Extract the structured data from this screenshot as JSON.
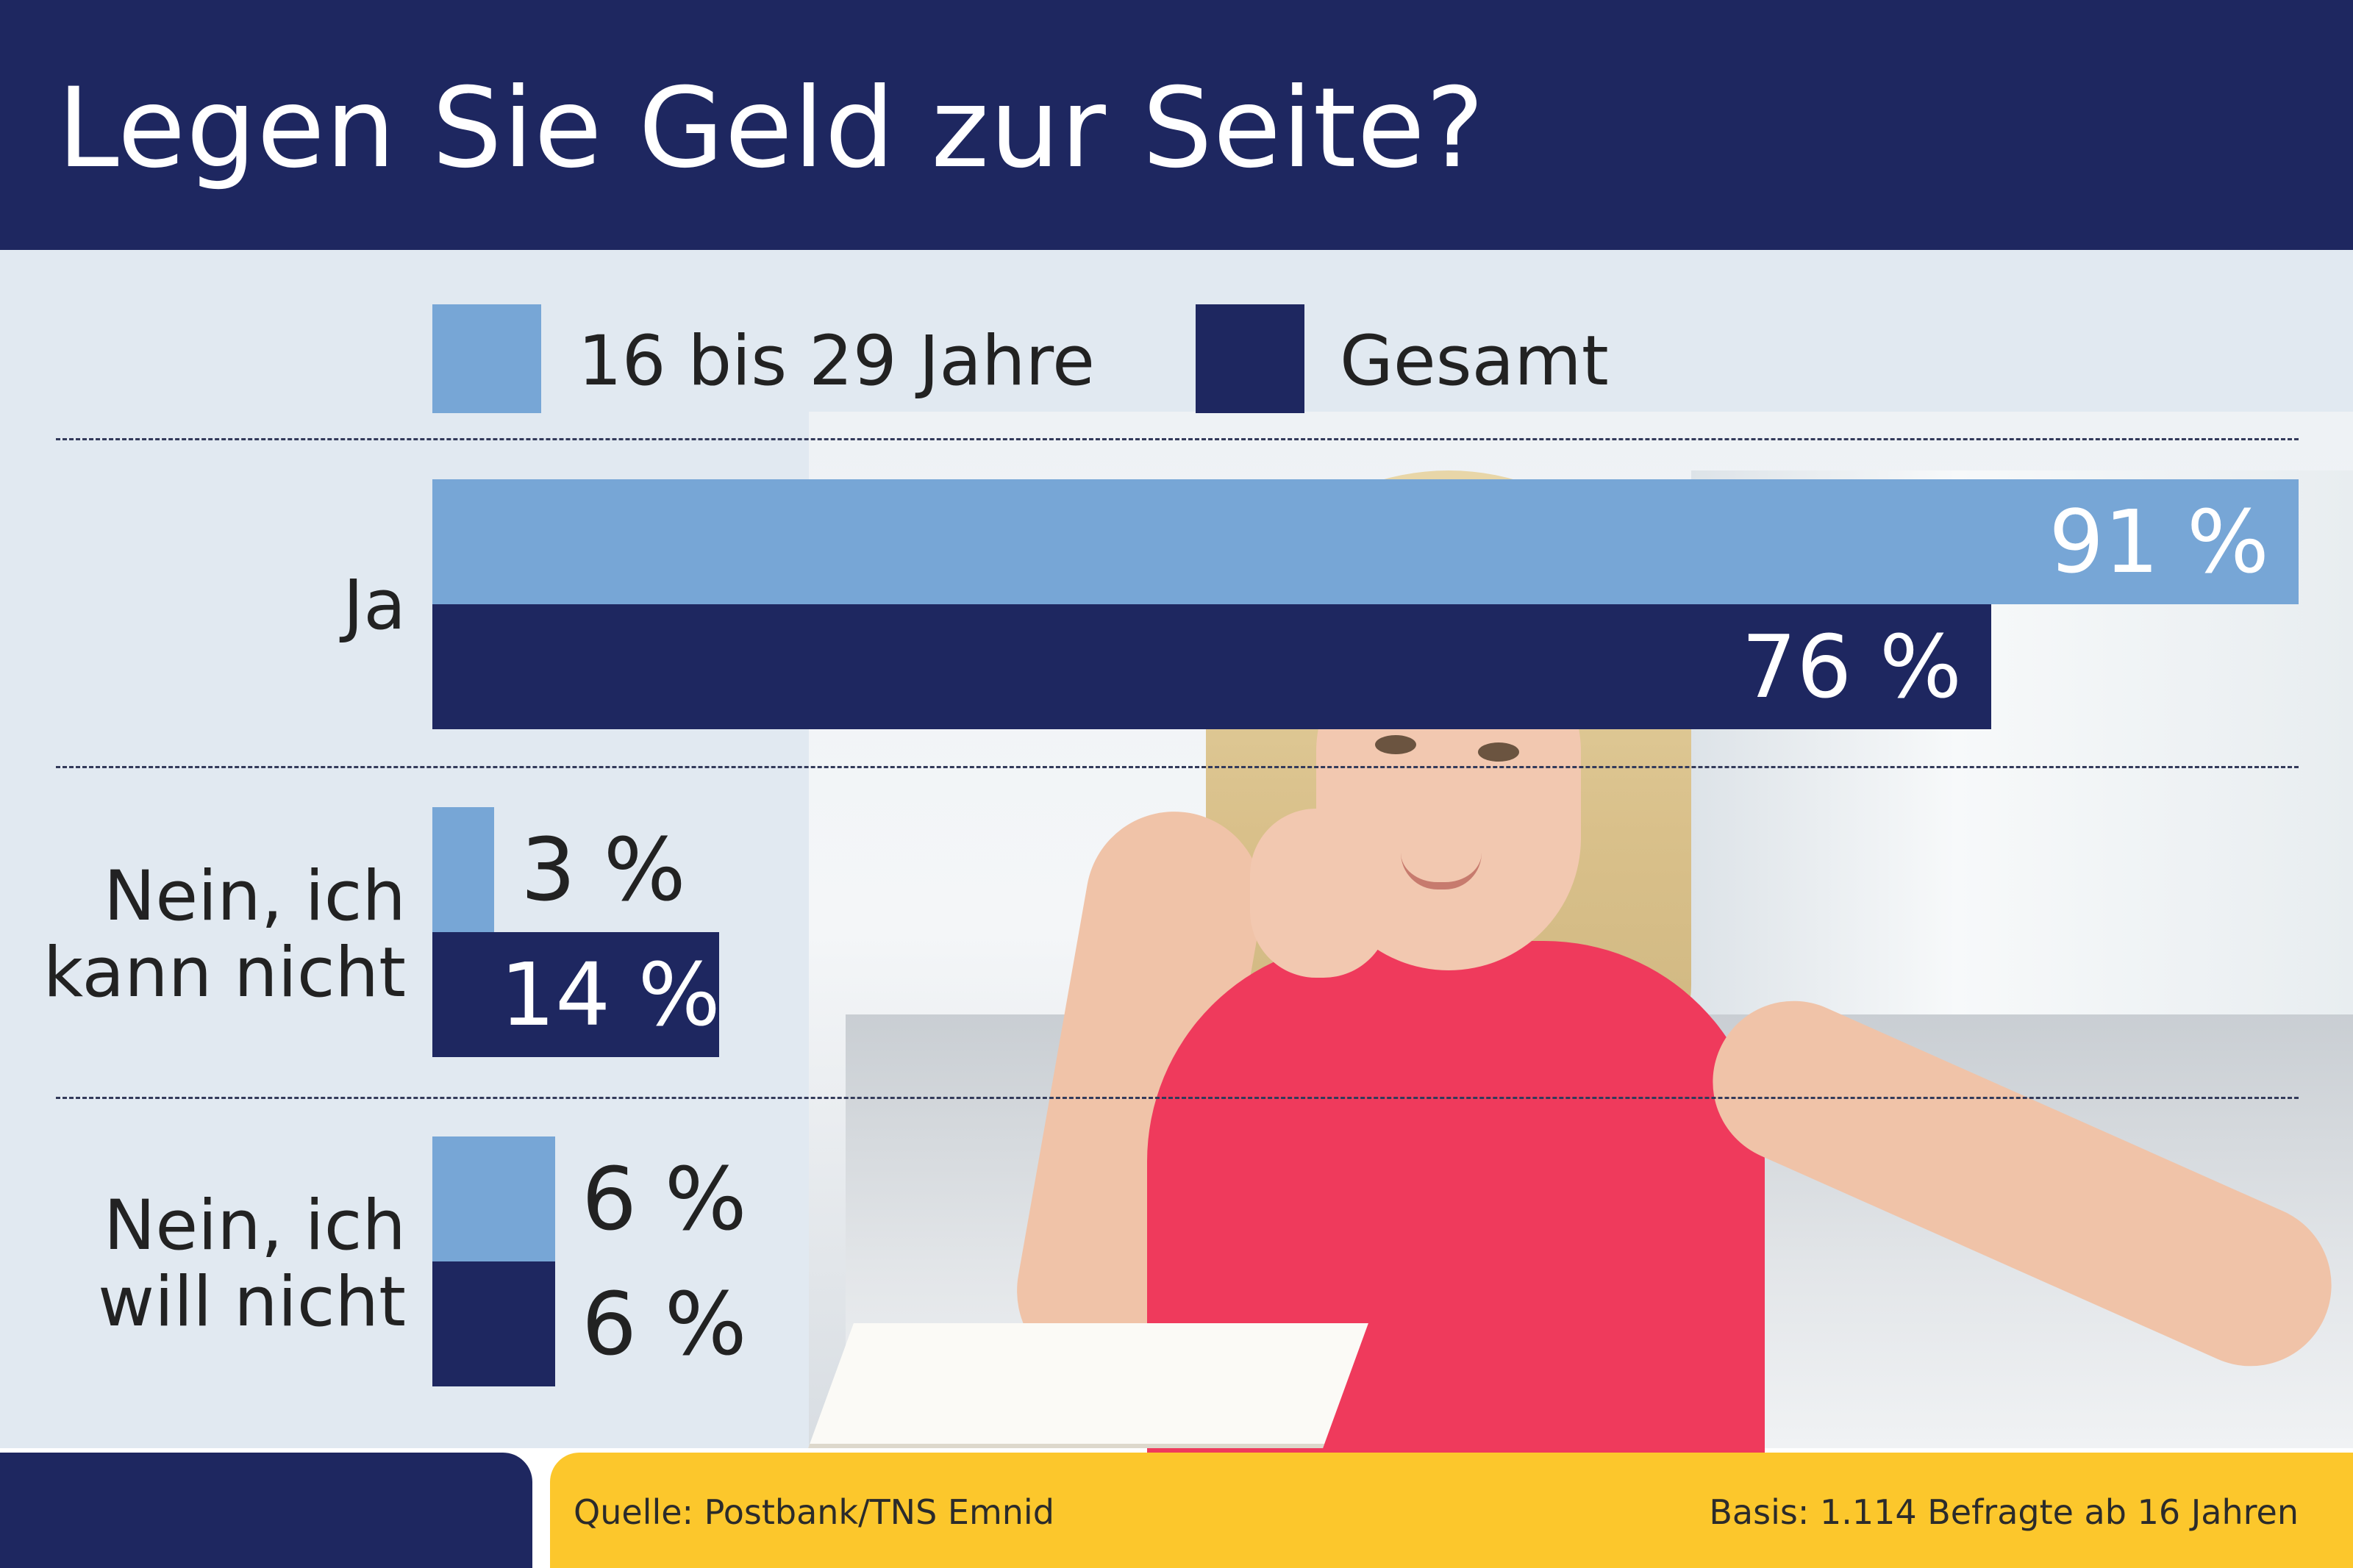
{
  "chart_data": {
    "type": "bar",
    "orientation": "horizontal",
    "title": "Legen Sie Geld zur Seite?",
    "categories": [
      "Ja",
      "Nein, ich\nkann nicht",
      "Nein, ich\nwill nicht"
    ],
    "series": [
      {
        "name": "16 bis 29 Jahre",
        "color": "#77a6d6",
        "values": [
          91,
          3,
          6
        ],
        "labels": [
          "91 %",
          "3 %",
          "6 %"
        ]
      },
      {
        "name": "Gesamt",
        "color": "#1e2760",
        "values": [
          76,
          14,
          6
        ],
        "labels": [
          "76 %",
          "14 %",
          "6 %"
        ]
      }
    ],
    "legend": "top",
    "xlim": [
      0,
      91
    ]
  },
  "footer": {
    "source": "Quelle: Postbank/TNS Emnid",
    "basis": "Basis: 1.114 Befragte ab 16 Jahren"
  },
  "colors": {
    "header_bg": "#1e2760",
    "panel_bg": "#e1e9f1",
    "footer_accent": "#fcc72c"
  },
  "image": {
    "photo_icon": "photo-young-woman-with-earphones"
  }
}
